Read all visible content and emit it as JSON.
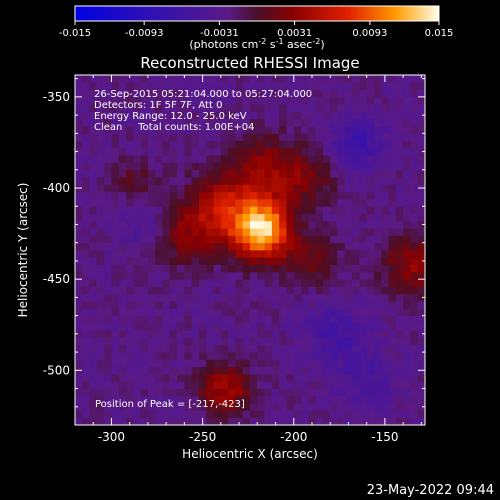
{
  "colorbar": {
    "ticks": [
      "-0.015",
      "-0.0093",
      "-0.0031",
      "0.0031",
      "0.0093",
      "0.015"
    ],
    "units_prefix": "(photons cm",
    "units_exp1": "-2",
    "units_mid1": " s",
    "units_exp2": "-1",
    "units_mid2": " asec",
    "units_exp3": "-2",
    "units_suffix": ")"
  },
  "title": "Reconstructed RHESSI Image",
  "info": {
    "line1": "26-Sep-2015 05:21:04.000 to 05:27:04.000",
    "line2": "Detectors: 1F 5F 7F, Att 0",
    "line3": "Energy Range: 12.0 - 25.0 keV",
    "line4": "Clean     Total counts: 1.00E+04"
  },
  "peak_label": "Position of Peak = [-217,-423]",
  "footer_date": "23-May-2022 09:44",
  "chart_data": {
    "type": "heatmap",
    "title": "Reconstructed RHESSI Image",
    "xlabel": "Heliocentric X (arcsec)",
    "ylabel": "Heliocentric Y (arcsec)",
    "xlim": [
      -320,
      -128
    ],
    "ylim": [
      -530,
      -338
    ],
    "x_ticks": [
      -300,
      -250,
      -200,
      -150
    ],
    "y_ticks": [
      -350,
      -400,
      -450,
      -500
    ],
    "x_tick_labels": [
      "-300",
      "-250",
      "-200",
      "-150"
    ],
    "y_tick_labels": [
      "-350",
      "-400",
      "-450",
      "-500"
    ],
    "value_range": [
      -0.015,
      0.015
    ],
    "peak": [
      -217,
      -423
    ],
    "sources": [
      {
        "x": -217,
        "y": -423,
        "sigma": 11,
        "amp": 0.015
      },
      {
        "x": -238,
        "y": -412,
        "sigma": 14,
        "amp": 0.0075
      },
      {
        "x": -215,
        "y": -390,
        "sigma": 13,
        "amp": 0.0055
      },
      {
        "x": -262,
        "y": -425,
        "sigma": 12,
        "amp": 0.0045
      },
      {
        "x": -190,
        "y": -440,
        "sigma": 10,
        "amp": 0.004
      },
      {
        "x": -238,
        "y": -510,
        "sigma": 10,
        "amp": 0.0065
      },
      {
        "x": -192,
        "y": -395,
        "sigma": 11,
        "amp": 0.0035
      },
      {
        "x": -135,
        "y": -442,
        "sigma": 12,
        "amp": 0.0055
      },
      {
        "x": -287,
        "y": -395,
        "sigma": 8,
        "amp": 0.003
      },
      {
        "x": -165,
        "y": -375,
        "sigma": 10,
        "amp": -0.0045
      },
      {
        "x": -178,
        "y": -480,
        "sigma": 12,
        "amp": -0.0032
      },
      {
        "x": -280,
        "y": -420,
        "sigma": 10,
        "amp": -0.0025
      },
      {
        "x": -160,
        "y": -505,
        "sigma": 12,
        "amp": -0.0025
      }
    ],
    "background": -0.0025
  }
}
